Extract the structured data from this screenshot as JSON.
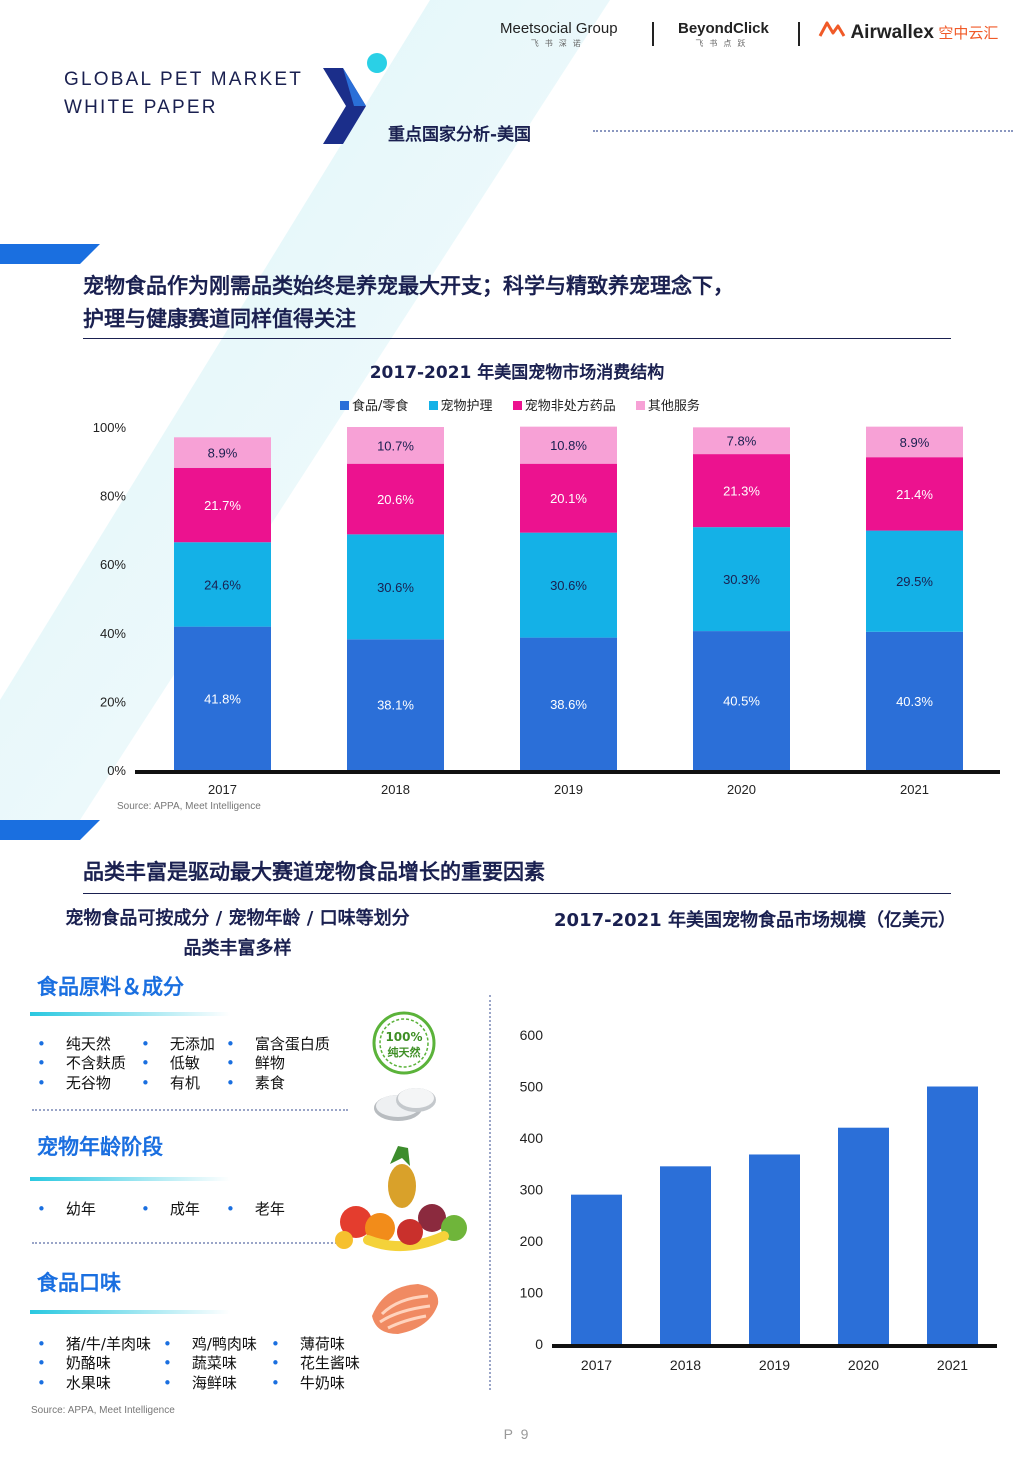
{
  "header": {
    "doc_title_line1": "GLOBAL PET MARKET",
    "doc_title_line2": "WHITE PAPER",
    "section": "重点国家分析-美国",
    "brands": [
      {
        "name": "Meetsocial Group",
        "sub": "飞书深诺"
      },
      {
        "name": "BeyondClick",
        "sub": "飞书点跃"
      },
      {
        "name": "Airwallex",
        "sub": "空中云汇"
      }
    ]
  },
  "section1": {
    "headline_line1": "宠物食品作为刚需品类始终是养宠最大开支；科学与精致养宠理念下，",
    "headline_line2": "护理与健康赛道同样值得关注",
    "source": "Source: APPA, Meet Intelligence"
  },
  "section2": {
    "headline": "品类丰富是驱动最大赛道宠物食品增长的重要因素",
    "left_title_line1": "宠物食品可按成分 / 宠物年龄 / 口味等划分",
    "left_title_line2": "品类丰富多样",
    "categories": [
      {
        "title": "食品原料＆成分",
        "items": [
          "纯天然",
          "无添加",
          "富含蛋白质",
          "不含麸质",
          "低敏",
          "鲜物",
          "无谷物",
          "有机",
          "素食"
        ]
      },
      {
        "title": "宠物年龄阶段",
        "items": [
          "幼年",
          "成年",
          "老年"
        ]
      },
      {
        "title": "食品口味",
        "items": [
          "猪/牛/羊肉味",
          "鸡/鸭肉味",
          "薄荷味",
          "奶酪味",
          "蔬菜味",
          "花生酱味",
          "水果味",
          "海鲜味",
          "牛奶味"
        ]
      }
    ],
    "badge_text_1": "100%",
    "badge_text_2": "纯天然",
    "source": "Source: APPA, Meet Intelligence"
  },
  "page_number": "P 9",
  "colors": {
    "food": "#2b6fd8",
    "care": "#14b1e7",
    "medicine": "#ec128f",
    "other": "#f7a1d6",
    "navy": "#1a2050",
    "accent": "#1a6fe0"
  },
  "chart_data": [
    {
      "type": "bar",
      "stacked": true,
      "title": "2017-2021 年美国宠物市场消费结构",
      "categories": [
        "2017",
        "2018",
        "2019",
        "2020",
        "2021"
      ],
      "series": [
        {
          "name": "食品/零食",
          "values": [
            41.8,
            38.1,
            38.6,
            40.5,
            40.3
          ],
          "labels": [
            "41.8%",
            "38.1%",
            "38.6%",
            "40.5%",
            "40.3%"
          ]
        },
        {
          "name": "宠物护理",
          "values": [
            24.6,
            30.6,
            30.6,
            30.3,
            29.5
          ],
          "labels": [
            "24.6%",
            "30.6%",
            "30.6%",
            "30.3%",
            "29.5%"
          ]
        },
        {
          "name": "宠物非处方药品",
          "values": [
            21.7,
            20.6,
            20.1,
            21.3,
            21.4
          ],
          "labels": [
            "21.7%",
            "20.6%",
            "20.1%",
            "21.3%",
            "21.4%"
          ]
        },
        {
          "name": "其他服务",
          "values": [
            8.9,
            10.7,
            10.8,
            7.8,
            8.9
          ],
          "labels": [
            "8.9%",
            "10.7%",
            "10.8%",
            "7.8%",
            "8.9%"
          ]
        }
      ],
      "yticks": [
        "0%",
        "20%",
        "40%",
        "60%",
        "80%",
        "100%"
      ],
      "ylim": [
        0,
        100
      ],
      "legend": "top"
    },
    {
      "type": "bar",
      "title": "2017-2021 年美国宠物食品市场规模（亿美元）",
      "categories": [
        "2017",
        "2018",
        "2019",
        "2020",
        "2021"
      ],
      "values": [
        290,
        345,
        368,
        420,
        500
      ],
      "yticks": [
        "0",
        "100",
        "200",
        "300",
        "400",
        "500",
        "600"
      ],
      "ylim": [
        0,
        600
      ]
    }
  ]
}
